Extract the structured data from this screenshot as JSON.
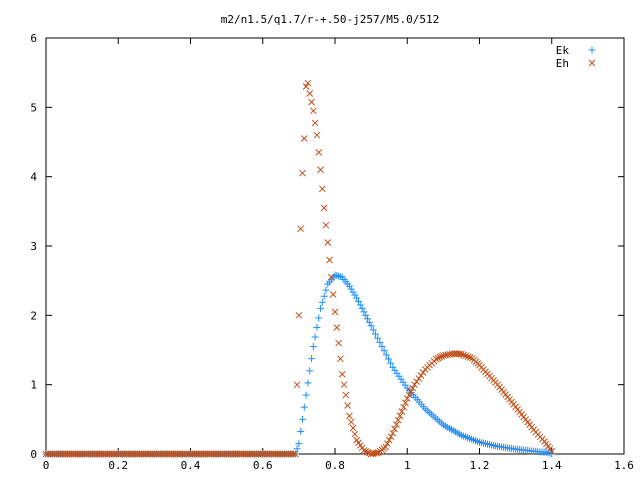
{
  "chart_data": {
    "type": "scatter",
    "title": "m2/n1.5/q1.7/r-+.50-j257/M5.0/512",
    "xlabel": "",
    "ylabel": "",
    "xlim": [
      0,
      1.6
    ],
    "ylim": [
      0,
      6
    ],
    "x_ticks": [
      "0",
      "0.2",
      "0.4",
      "0.6",
      "0.8",
      "1",
      "1.2",
      "1.4",
      "1.6"
    ],
    "y_ticks": [
      "0",
      "1",
      "2",
      "3",
      "4",
      "5",
      "6"
    ],
    "grid": false,
    "legend_position": "top-right",
    "series": [
      {
        "name": "Ek",
        "marker": "plus",
        "color": "#1e90ff",
        "x": [
          0,
          0.1,
          0.2,
          0.3,
          0.4,
          0.5,
          0.6,
          0.69,
          0.7,
          0.72,
          0.74,
          0.76,
          0.78,
          0.8,
          0.82,
          0.84,
          0.86,
          0.88,
          0.9,
          0.93,
          0.96,
          1.0,
          1.05,
          1.1,
          1.15,
          1.2,
          1.25,
          1.3,
          1.35,
          1.39,
          1.4
        ],
        "y": [
          0,
          0,
          0,
          0,
          0,
          0,
          0,
          0,
          0.15,
          0.85,
          1.55,
          2.1,
          2.45,
          2.58,
          2.55,
          2.42,
          2.25,
          2.05,
          1.85,
          1.55,
          1.25,
          0.95,
          0.65,
          0.42,
          0.27,
          0.17,
          0.11,
          0.07,
          0.04,
          0.02,
          0
        ]
      },
      {
        "name": "Eh",
        "marker": "cross",
        "color": "#c0501a",
        "x": [
          0,
          0.1,
          0.2,
          0.3,
          0.4,
          0.5,
          0.6,
          0.69,
          0.7,
          0.705,
          0.71,
          0.715,
          0.72,
          0.725,
          0.73,
          0.74,
          0.75,
          0.76,
          0.77,
          0.78,
          0.8,
          0.82,
          0.84,
          0.86,
          0.88,
          0.9,
          0.92,
          0.94,
          0.96,
          0.98,
          1.0,
          1.02,
          1.05,
          1.08,
          1.1,
          1.13,
          1.15,
          1.18,
          1.2,
          1.25,
          1.3,
          1.35,
          1.38,
          1.4
        ],
        "y": [
          0,
          0,
          0,
          0,
          0,
          0,
          0,
          0,
          2.0,
          3.25,
          4.05,
          4.55,
          5.3,
          5.35,
          5.2,
          4.95,
          4.6,
          4.1,
          3.55,
          3.05,
          2.05,
          1.15,
          0.55,
          0.2,
          0.05,
          0.0,
          0.02,
          0.1,
          0.3,
          0.55,
          0.8,
          1.0,
          1.22,
          1.37,
          1.42,
          1.45,
          1.44,
          1.38,
          1.28,
          1.0,
          0.68,
          0.35,
          0.18,
          0.04
        ]
      }
    ]
  }
}
